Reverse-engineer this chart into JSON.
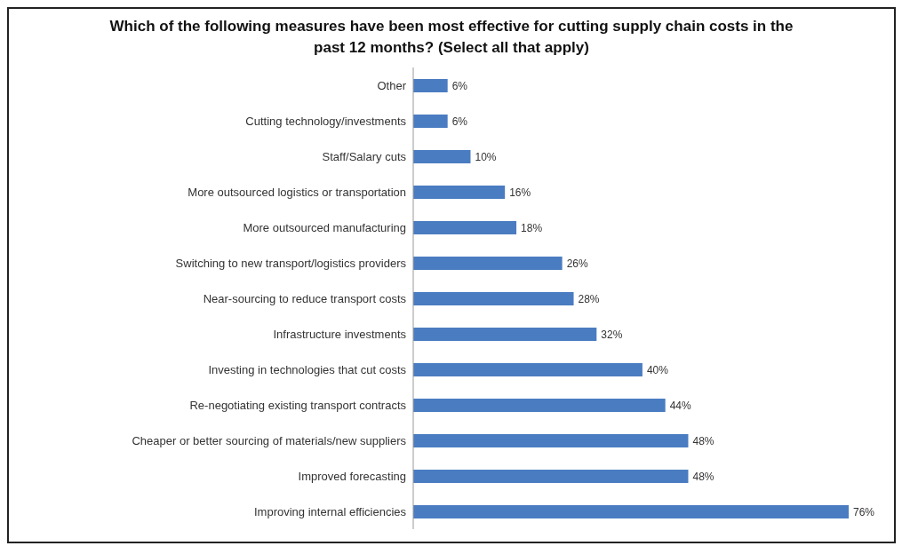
{
  "chart_data": {
    "type": "bar",
    "orientation": "horizontal",
    "title": "Which of the following measures have been most effective for cutting supply chain costs in the past 12 months? (Select all that apply)",
    "categories": [
      "Other",
      "Cutting technology/investments",
      "Staff/Salary cuts",
      "More outsourced logistics or transportation",
      "More outsourced manufacturing",
      "Switching to new transport/logistics providers",
      "Near-sourcing to reduce transport costs",
      "Infrastructure investments",
      "Investing in technologies that cut costs",
      "Re-negotiating existing transport contracts",
      "Cheaper or better sourcing of materials/new suppliers",
      "Improved forecasting",
      "Improving internal efficiencies"
    ],
    "values": [
      6,
      6,
      10,
      16,
      18,
      26,
      28,
      32,
      40,
      44,
      48,
      48,
      76
    ],
    "value_labels": [
      "6%",
      "6%",
      "10%",
      "16%",
      "18%",
      "26%",
      "28%",
      "32%",
      "40%",
      "44%",
      "48%",
      "48%",
      "76%"
    ],
    "color": "#4a7cc1"
  }
}
